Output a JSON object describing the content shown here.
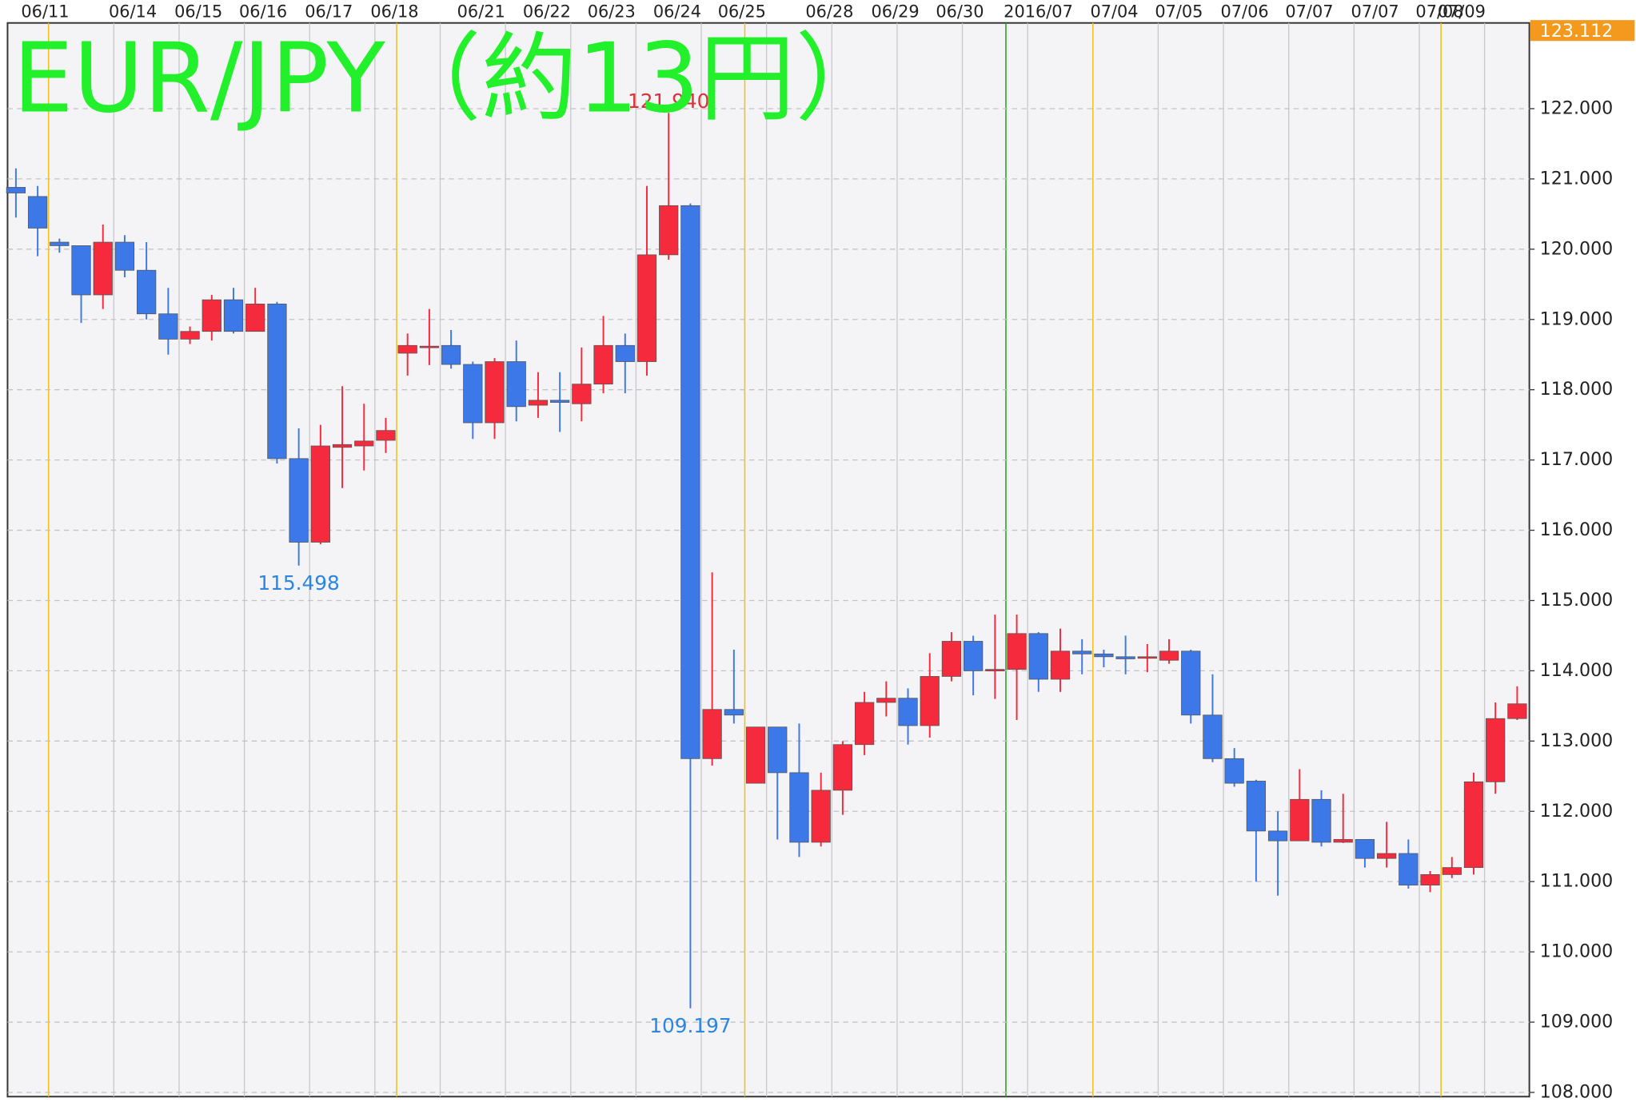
{
  "chart_data": {
    "type": "candlestick",
    "title": "EUR/JPY（約13円）",
    "x_labels": [
      "06/11",
      "06/14",
      "06/15",
      "06/16",
      "06/17",
      "06/18",
      "06/21",
      "06/22",
      "06/23",
      "06/24",
      "06/25",
      "06/28",
      "06/29",
      "06/30",
      "2016/07",
      "07/04",
      "07/05",
      "07/06",
      "07/07",
      "07/07",
      "07/08",
      "07/09"
    ],
    "open": [
      120.88,
      120.75,
      120.1,
      120.05,
      119.35,
      120.1,
      119.7,
      119.08,
      118.72,
      118.83,
      119.28,
      118.83,
      119.22,
      117.02,
      115.83,
      117.18,
      117.2,
      117.28,
      118.52,
      118.6,
      118.63,
      118.36,
      117.53,
      118.4,
      117.78,
      117.85,
      117.8,
      118.08,
      118.63,
      118.4,
      119.92,
      120.62,
      112.75,
      113.45,
      112.4,
      113.2,
      112.55,
      111.56,
      112.3,
      112.95,
      113.55,
      113.61,
      113.22,
      113.92,
      114.42,
      114.0,
      114.02,
      114.53,
      113.88,
      114.28,
      114.24,
      114.2,
      114.18,
      114.15,
      114.28,
      113.37,
      112.75,
      112.43,
      111.72,
      111.58,
      112.17,
      111.56,
      111.6,
      111.33,
      111.4,
      110.95,
      111.1,
      111.2,
      112.42,
      113.32
    ],
    "high": [
      121.15,
      120.9,
      120.15,
      120.05,
      120.35,
      120.2,
      120.1,
      119.45,
      118.9,
      119.35,
      119.45,
      119.45,
      119.25,
      117.45,
      117.5,
      118.05,
      117.8,
      117.6,
      118.8,
      119.15,
      118.85,
      118.4,
      118.45,
      118.7,
      118.25,
      118.25,
      118.6,
      119.05,
      118.8,
      120.9,
      121.94,
      120.65,
      115.4,
      114.3,
      113.2,
      113.2,
      113.25,
      112.55,
      113.0,
      113.7,
      113.85,
      113.75,
      114.25,
      114.55,
      114.5,
      114.8,
      114.8,
      114.55,
      114.6,
      114.45,
      114.3,
      114.5,
      114.38,
      114.45,
      114.3,
      113.95,
      112.9,
      112.45,
      112.0,
      112.6,
      112.3,
      112.25,
      111.6,
      111.85,
      111.6,
      111.15,
      111.35,
      112.55,
      113.55,
      113.78
    ],
    "low": [
      120.45,
      119.9,
      119.95,
      118.95,
      119.15,
      119.6,
      119.0,
      118.5,
      118.65,
      118.7,
      118.8,
      118.85,
      116.95,
      115.498,
      115.8,
      116.6,
      116.85,
      117.1,
      118.2,
      118.35,
      118.3,
      117.3,
      117.3,
      117.55,
      117.6,
      117.4,
      117.55,
      117.95,
      117.95,
      118.2,
      119.85,
      109.197,
      112.65,
      113.25,
      112.4,
      111.6,
      111.35,
      111.5,
      111.95,
      112.8,
      113.35,
      112.95,
      113.05,
      113.85,
      113.65,
      113.6,
      113.3,
      113.7,
      113.7,
      113.95,
      114.05,
      113.95,
      113.98,
      114.1,
      113.25,
      112.7,
      112.35,
      111.0,
      110.8,
      111.58,
      111.5,
      111.55,
      111.2,
      111.2,
      110.9,
      110.85,
      111.05,
      111.1,
      112.25,
      113.3
    ],
    "close": [
      120.8,
      120.3,
      120.05,
      119.35,
      120.1,
      119.7,
      119.08,
      118.72,
      118.83,
      119.28,
      118.83,
      119.22,
      117.02,
      115.83,
      117.2,
      117.22,
      117.27,
      117.42,
      118.63,
      118.62,
      118.36,
      117.53,
      118.4,
      117.76,
      117.85,
      117.82,
      118.08,
      118.63,
      118.4,
      119.92,
      120.62,
      112.75,
      113.45,
      113.37,
      113.2,
      112.55,
      111.56,
      112.3,
      112.95,
      113.55,
      113.61,
      113.22,
      113.92,
      114.42,
      114.0,
      114.02,
      114.53,
      113.88,
      114.28,
      114.24,
      114.2,
      114.17,
      114.2,
      114.28,
      113.37,
      112.75,
      112.4,
      111.72,
      111.58,
      112.17,
      111.56,
      111.6,
      111.33,
      111.4,
      110.95,
      111.1,
      111.2,
      112.42,
      113.32,
      113.53
    ],
    "up_color": "#f52a3c",
    "down_color": "#3d78e8",
    "annotations": [
      {
        "value": 121.94,
        "label": "121.940",
        "color": "#e0303a"
      },
      {
        "value": 115.498,
        "label": "115.498",
        "color": "#2a86e0"
      },
      {
        "value": 109.197,
        "label": "109.197",
        "color": "#2a86e0"
      }
    ],
    "price_tag": 123.112,
    "ylim": [
      107.94,
      123.22
    ],
    "yticks": [
      {
        "value": 108,
        "label": "108.000"
      },
      {
        "value": 109,
        "label": "109.000"
      },
      {
        "value": 110,
        "label": "110.000"
      },
      {
        "value": 111,
        "label": "111.000"
      },
      {
        "value": 112,
        "label": "112.000"
      },
      {
        "value": 113,
        "label": "113.000"
      },
      {
        "value": 114,
        "label": "114.000"
      },
      {
        "value": 115,
        "label": "115.000"
      },
      {
        "value": 116,
        "label": "116.000"
      },
      {
        "value": 117,
        "label": "117.000"
      },
      {
        "value": 118,
        "label": "118.000"
      },
      {
        "value": 119,
        "label": "119.000"
      },
      {
        "value": 120,
        "label": "120.000"
      },
      {
        "value": 121,
        "label": "121.000"
      },
      {
        "value": 122,
        "label": "122.000"
      }
    ],
    "grid": true
  }
}
